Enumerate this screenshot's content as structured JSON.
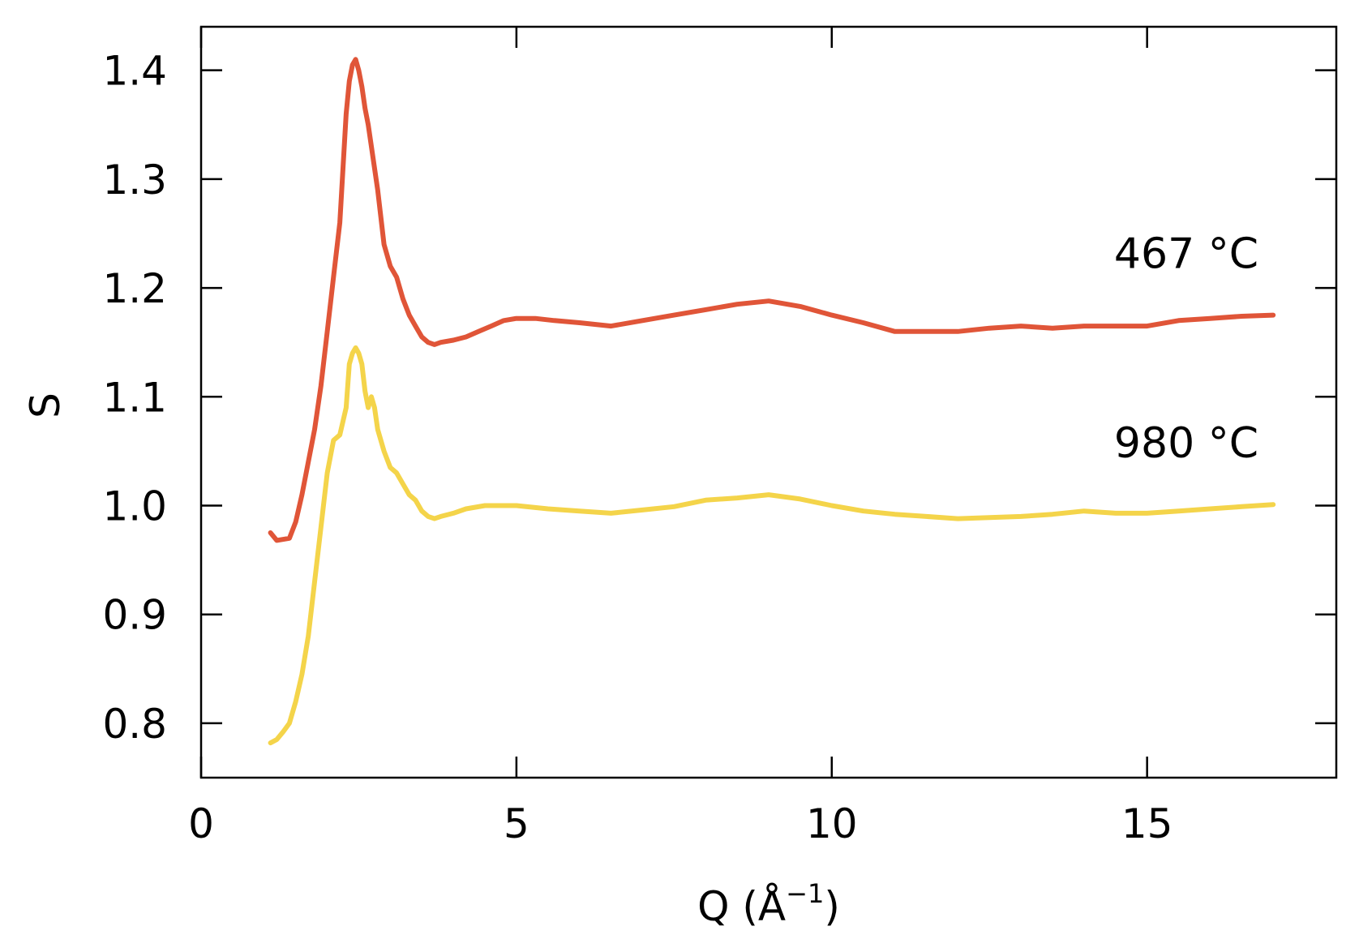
{
  "chart_data": {
    "type": "line",
    "title": "",
    "xlabel": "Q (Å",
    "xlabel_sup": "−1",
    "xlabel_close": ")",
    "ylabel": "S",
    "xlim": [
      0,
      18
    ],
    "ylim": [
      0.75,
      1.44
    ],
    "xticks": [
      0,
      5,
      10,
      15
    ],
    "xtick_labels": [
      "0",
      "5",
      "10",
      "15"
    ],
    "yticks": [
      0.8,
      0.9,
      1.0,
      1.1,
      1.2,
      1.3,
      1.4
    ],
    "ytick_labels": [
      "0.8",
      "0.9",
      "1.0",
      "1.1",
      "1.2",
      "1.3",
      "1.4"
    ],
    "grid": false,
    "legend": "none",
    "series": [
      {
        "label": "467 °C",
        "color": "#e05538",
        "x": [
          1.1,
          1.2,
          1.4,
          1.5,
          1.6,
          1.7,
          1.8,
          1.9,
          2.0,
          2.1,
          2.2,
          2.25,
          2.3,
          2.35,
          2.4,
          2.45,
          2.5,
          2.55,
          2.6,
          2.65,
          2.7,
          2.8,
          2.9,
          3.0,
          3.1,
          3.2,
          3.3,
          3.4,
          3.5,
          3.6,
          3.7,
          3.8,
          4.0,
          4.2,
          4.4,
          4.6,
          4.8,
          5.0,
          5.3,
          5.6,
          6.0,
          6.5,
          7.0,
          7.5,
          8.0,
          8.5,
          9.0,
          9.5,
          10.0,
          10.5,
          11.0,
          11.5,
          12.0,
          12.5,
          13.0,
          13.5,
          14.0,
          14.5,
          15.0,
          15.5,
          16.0,
          16.5,
          17.0
        ],
        "y": [
          0.975,
          0.968,
          0.97,
          0.985,
          1.01,
          1.04,
          1.07,
          1.11,
          1.16,
          1.21,
          1.26,
          1.31,
          1.36,
          1.39,
          1.405,
          1.41,
          1.4,
          1.385,
          1.365,
          1.35,
          1.33,
          1.29,
          1.24,
          1.22,
          1.21,
          1.19,
          1.175,
          1.165,
          1.155,
          1.15,
          1.148,
          1.15,
          1.152,
          1.155,
          1.16,
          1.165,
          1.17,
          1.172,
          1.172,
          1.17,
          1.168,
          1.165,
          1.17,
          1.175,
          1.18,
          1.185,
          1.188,
          1.183,
          1.175,
          1.168,
          1.16,
          1.16,
          1.16,
          1.163,
          1.165,
          1.163,
          1.165,
          1.165,
          1.165,
          1.17,
          1.172,
          1.174,
          1.175
        ]
      },
      {
        "label": "980 °C",
        "color": "#f4d44a",
        "x": [
          1.1,
          1.2,
          1.3,
          1.4,
          1.5,
          1.6,
          1.7,
          1.8,
          1.9,
          2.0,
          2.1,
          2.2,
          2.3,
          2.35,
          2.4,
          2.45,
          2.5,
          2.55,
          2.6,
          2.65,
          2.7,
          2.75,
          2.8,
          2.9,
          3.0,
          3.1,
          3.2,
          3.3,
          3.4,
          3.5,
          3.6,
          3.7,
          3.8,
          4.0,
          4.2,
          4.5,
          5.0,
          5.5,
          6.0,
          6.5,
          7.0,
          7.5,
          8.0,
          8.5,
          9.0,
          9.5,
          10.0,
          10.5,
          11.0,
          11.5,
          12.0,
          12.5,
          13.0,
          13.5,
          14.0,
          14.5,
          15.0,
          15.5,
          16.0,
          16.5,
          17.0
        ],
        "y": [
          0.782,
          0.785,
          0.792,
          0.8,
          0.82,
          0.845,
          0.88,
          0.93,
          0.98,
          1.03,
          1.06,
          1.065,
          1.09,
          1.13,
          1.14,
          1.145,
          1.14,
          1.13,
          1.105,
          1.09,
          1.1,
          1.09,
          1.07,
          1.05,
          1.035,
          1.03,
          1.02,
          1.01,
          1.005,
          0.995,
          0.99,
          0.988,
          0.99,
          0.993,
          0.997,
          1.0,
          1.0,
          0.997,
          0.995,
          0.993,
          0.996,
          0.999,
          1.005,
          1.007,
          1.01,
          1.006,
          1.0,
          0.995,
          0.992,
          0.99,
          0.988,
          0.989,
          0.99,
          0.992,
          0.995,
          0.993,
          0.993,
          0.995,
          0.997,
          0.999,
          1.001
        ]
      }
    ]
  }
}
